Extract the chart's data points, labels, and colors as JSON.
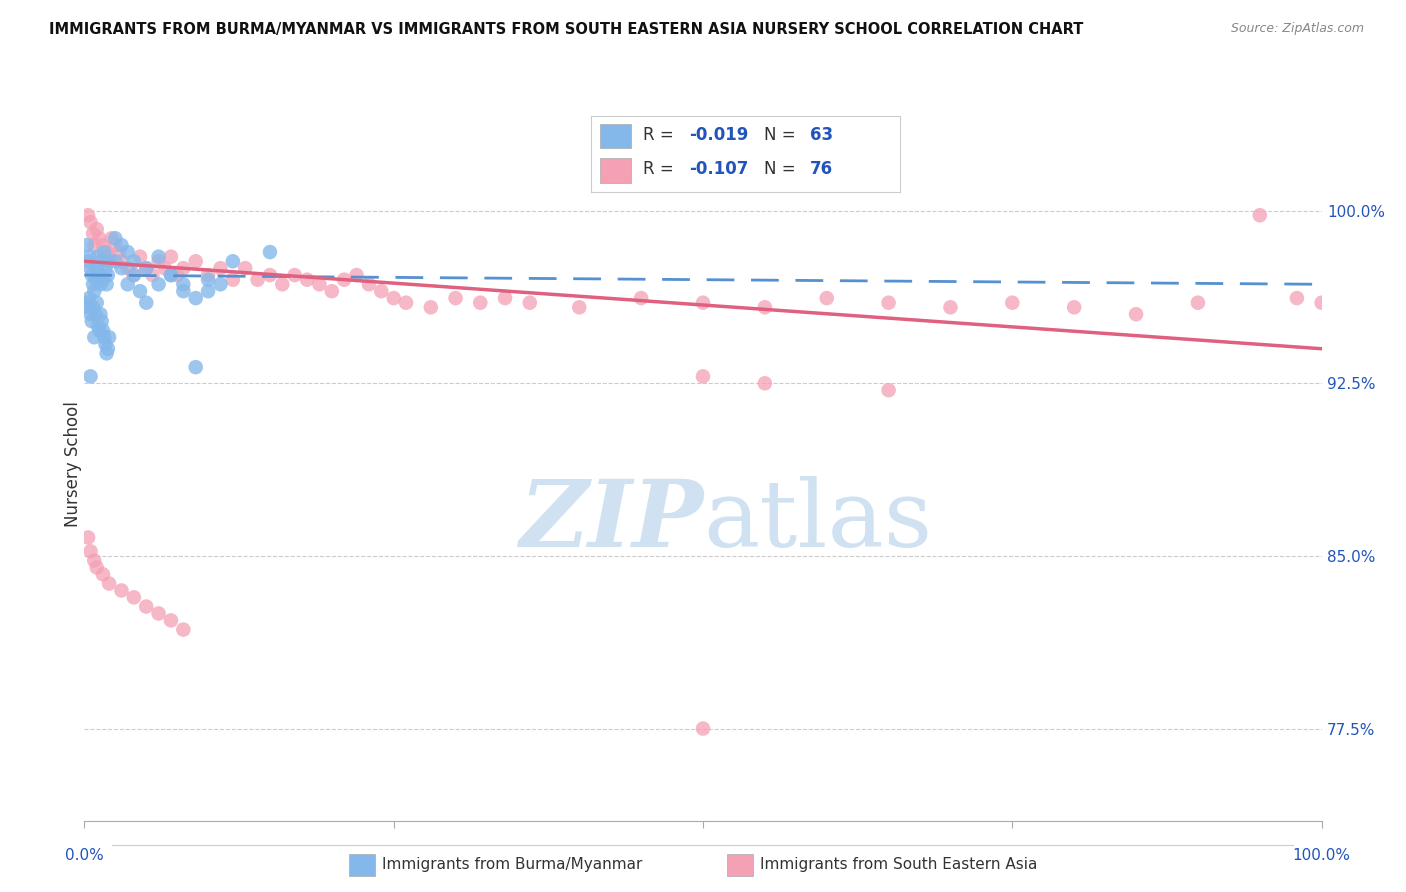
{
  "title": "IMMIGRANTS FROM BURMA/MYANMAR VS IMMIGRANTS FROM SOUTH EASTERN ASIA NURSERY SCHOOL CORRELATION CHART",
  "source": "Source: ZipAtlas.com",
  "ylabel": "Nursery School",
  "legend_label1": "Immigrants from Burma/Myanmar",
  "legend_label2": "Immigrants from South Eastern Asia",
  "R1": -0.019,
  "N1": 63,
  "R2": -0.107,
  "N2": 76,
  "color1": "#85b8ea",
  "color2": "#f4a0b5",
  "trendline1_color": "#5590d0",
  "trendline2_color": "#e06080",
  "xmin": 0.0,
  "xmax": 1.0,
  "ymin": 0.735,
  "ymax": 1.045,
  "ytick_values": [
    1.0,
    0.925,
    0.85,
    0.775
  ],
  "ytick_labels": [
    "100.0%",
    "92.5%",
    "85.0%",
    "77.5%"
  ],
  "blue_x": [
    0.002,
    0.003,
    0.004,
    0.005,
    0.006,
    0.007,
    0.008,
    0.009,
    0.01,
    0.011,
    0.012,
    0.013,
    0.014,
    0.015,
    0.016,
    0.017,
    0.018,
    0.019,
    0.02,
    0.002,
    0.003,
    0.004,
    0.005,
    0.006,
    0.007,
    0.008,
    0.009,
    0.01,
    0.011,
    0.012,
    0.013,
    0.014,
    0.015,
    0.016,
    0.017,
    0.018,
    0.019,
    0.02,
    0.025,
    0.03,
    0.035,
    0.04,
    0.045,
    0.05,
    0.06,
    0.07,
    0.08,
    0.09,
    0.1,
    0.11,
    0.025,
    0.03,
    0.035,
    0.04,
    0.05,
    0.06,
    0.07,
    0.08,
    0.1,
    0.12,
    0.15,
    0.09,
    0.005
  ],
  "blue_y": [
    0.985,
    0.978,
    0.98,
    0.975,
    0.972,
    0.968,
    0.965,
    0.97,
    0.975,
    0.98,
    0.972,
    0.968,
    0.978,
    0.97,
    0.982,
    0.975,
    0.968,
    0.972,
    0.978,
    0.96,
    0.958,
    0.962,
    0.955,
    0.952,
    0.958,
    0.945,
    0.955,
    0.96,
    0.95,
    0.948,
    0.955,
    0.952,
    0.948,
    0.945,
    0.942,
    0.938,
    0.94,
    0.945,
    0.978,
    0.975,
    0.968,
    0.972,
    0.965,
    0.96,
    0.968,
    0.972,
    0.965,
    0.962,
    0.97,
    0.968,
    0.988,
    0.985,
    0.982,
    0.978,
    0.975,
    0.98,
    0.972,
    0.968,
    0.965,
    0.978,
    0.982,
    0.932,
    0.928
  ],
  "pink_x": [
    0.003,
    0.005,
    0.007,
    0.008,
    0.01,
    0.012,
    0.015,
    0.018,
    0.02,
    0.022,
    0.025,
    0.028,
    0.03,
    0.035,
    0.04,
    0.045,
    0.05,
    0.055,
    0.06,
    0.065,
    0.07,
    0.075,
    0.08,
    0.09,
    0.1,
    0.11,
    0.12,
    0.13,
    0.14,
    0.15,
    0.16,
    0.17,
    0.18,
    0.19,
    0.2,
    0.21,
    0.22,
    0.23,
    0.24,
    0.25,
    0.26,
    0.28,
    0.3,
    0.32,
    0.34,
    0.36,
    0.4,
    0.45,
    0.5,
    0.55,
    0.6,
    0.65,
    0.7,
    0.75,
    0.8,
    0.85,
    0.9,
    0.95,
    0.98,
    1.0,
    0.003,
    0.005,
    0.008,
    0.01,
    0.015,
    0.02,
    0.03,
    0.04,
    0.05,
    0.06,
    0.07,
    0.08,
    0.5,
    0.55,
    0.65,
    0.5
  ],
  "pink_y": [
    0.998,
    0.995,
    0.99,
    0.985,
    0.992,
    0.988,
    0.985,
    0.982,
    0.98,
    0.988,
    0.985,
    0.982,
    0.978,
    0.975,
    0.972,
    0.98,
    0.975,
    0.972,
    0.978,
    0.975,
    0.98,
    0.972,
    0.975,
    0.978,
    0.972,
    0.975,
    0.97,
    0.975,
    0.97,
    0.972,
    0.968,
    0.972,
    0.97,
    0.968,
    0.965,
    0.97,
    0.972,
    0.968,
    0.965,
    0.962,
    0.96,
    0.958,
    0.962,
    0.96,
    0.962,
    0.96,
    0.958,
    0.962,
    0.96,
    0.958,
    0.962,
    0.96,
    0.958,
    0.96,
    0.958,
    0.955,
    0.96,
    0.998,
    0.962,
    0.96,
    0.858,
    0.852,
    0.848,
    0.845,
    0.842,
    0.838,
    0.835,
    0.832,
    0.828,
    0.825,
    0.822,
    0.818,
    0.928,
    0.925,
    0.922,
    0.775
  ]
}
